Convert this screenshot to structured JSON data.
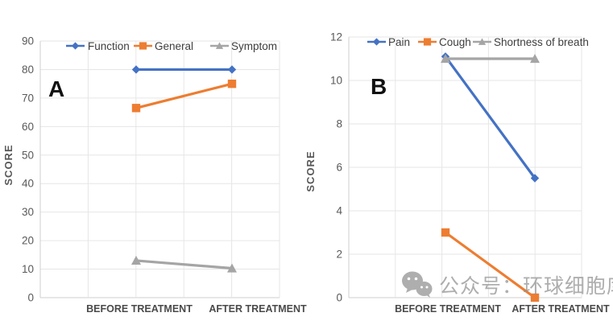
{
  "watermark": {
    "icon": "wechat-icon",
    "text": "公众号：环球细胞库"
  },
  "chart_data": [
    {
      "type": "line",
      "panel_label": "A",
      "title": "",
      "xlabel": "",
      "ylabel": "SCORE",
      "categories": [
        "BEFORE TREATMENT",
        "AFTER TREATMENT"
      ],
      "ylim": [
        0,
        90
      ],
      "yticks": [
        0,
        10,
        20,
        30,
        40,
        50,
        60,
        70,
        80,
        90
      ],
      "grid": true,
      "legend_position": "top",
      "series": [
        {
          "name": "Function",
          "marker": "diamond",
          "color": "#4472C4",
          "values": [
            80,
            80
          ]
        },
        {
          "name": "General",
          "marker": "square",
          "color": "#ED7D31",
          "values": [
            66.5,
            75
          ]
        },
        {
          "name": "Symptom",
          "marker": "triangle",
          "color": "#A5A5A5",
          "values": [
            13,
            10.3
          ]
        }
      ]
    },
    {
      "type": "line",
      "panel_label": "B",
      "title": "",
      "xlabel": "",
      "ylabel": "SCORE",
      "categories": [
        "BEFORE TREATMENT",
        "AFTER TREATMENT"
      ],
      "ylim": [
        0,
        12
      ],
      "yticks": [
        0,
        2,
        4,
        6,
        8,
        10,
        12
      ],
      "grid": true,
      "legend_position": "top",
      "series": [
        {
          "name": "Pain",
          "marker": "diamond",
          "color": "#4472C4",
          "values": [
            11.1,
            5.5
          ]
        },
        {
          "name": "Cough",
          "marker": "square",
          "color": "#ED7D31",
          "values": [
            3,
            0
          ]
        },
        {
          "name": "Shortness of breath",
          "marker": "triangle",
          "color": "#A5A5A5",
          "values": [
            11,
            11
          ]
        }
      ]
    }
  ],
  "colors": {
    "grid": "#e6e6e6",
    "axis": "#cfcfcf",
    "tick_text": "#595959",
    "category_text": "#4a4a4a",
    "legend_text": "#3d3d3d",
    "panel_letter": "#111111",
    "watermark_gray": "#8f8f8f"
  }
}
